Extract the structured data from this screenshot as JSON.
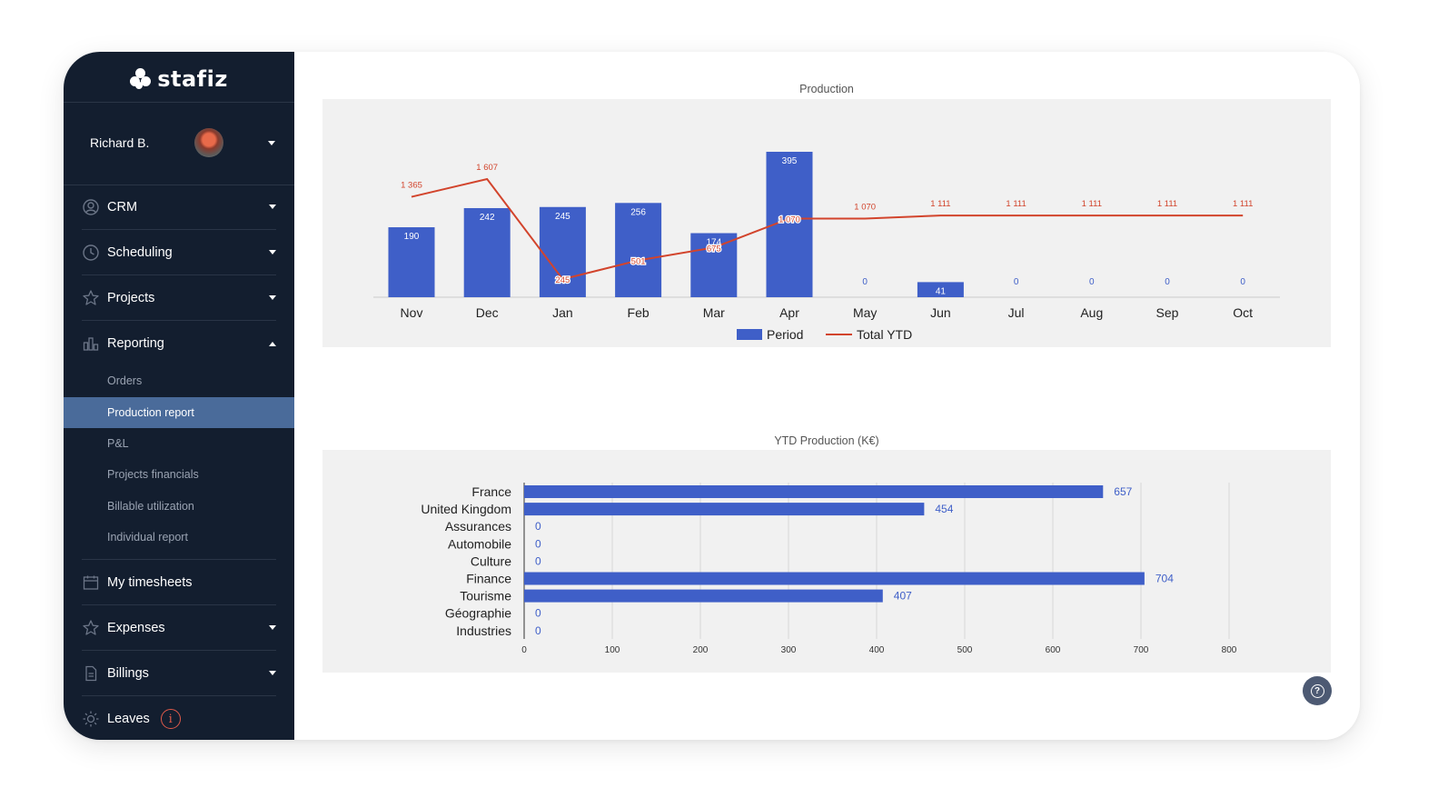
{
  "brand": {
    "name": "stafiz"
  },
  "user": {
    "name": "Richard B."
  },
  "nav": {
    "crm": "CRM",
    "scheduling": "Scheduling",
    "projects": "Projects",
    "reporting": "Reporting",
    "reporting_items": [
      "Orders",
      "Production report",
      "P&L",
      "Projects financials",
      "Billable utilization",
      "Individual report"
    ],
    "timesheets": "My timesheets",
    "expenses": "Expenses",
    "billings": "Billings",
    "leaves": "Leaves"
  },
  "chart_data": [
    {
      "type": "bar",
      "title": "Production",
      "categories": [
        "Nov",
        "Dec",
        "Jan",
        "Feb",
        "Mar",
        "Apr",
        "May",
        "Jun",
        "Jul",
        "Aug",
        "Sep",
        "Oct"
      ],
      "series": [
        {
          "name": "Period",
          "type": "bar",
          "color": "#3f5fc8",
          "values": [
            190,
            242,
            245,
            256,
            174,
            395,
            0,
            41,
            0,
            0,
            0,
            0
          ]
        },
        {
          "name": "Total YTD",
          "type": "line",
          "color": "#d2442c",
          "values": [
            1365,
            1607,
            245,
            501,
            675,
            1070,
            1070,
            1111,
            1111,
            1111,
            1111,
            1111
          ],
          "labels": [
            "1 365",
            "1 607",
            "245",
            "501",
            "675",
            "1 070",
            "1 070",
            "1 111",
            "1 111",
            "1 111",
            "1 111",
            "1 111"
          ]
        }
      ],
      "legend": "bottom",
      "grid": false
    },
    {
      "type": "bar",
      "orientation": "horizontal",
      "title": "YTD Production (K€)",
      "categories": [
        "France",
        "United Kingdom",
        "Assurances",
        "Automobile",
        "Culture",
        "Finance",
        "Tourisme",
        "Géographie",
        "Industries"
      ],
      "values": [
        657,
        454,
        0,
        0,
        0,
        704,
        407,
        0,
        0
      ],
      "xticks": [
        "0",
        "100",
        "200",
        "300",
        "400",
        "500",
        "600",
        "700",
        "800"
      ],
      "xlim": [
        0,
        800
      ],
      "color": "#3f5fc8",
      "grid": true
    }
  ]
}
